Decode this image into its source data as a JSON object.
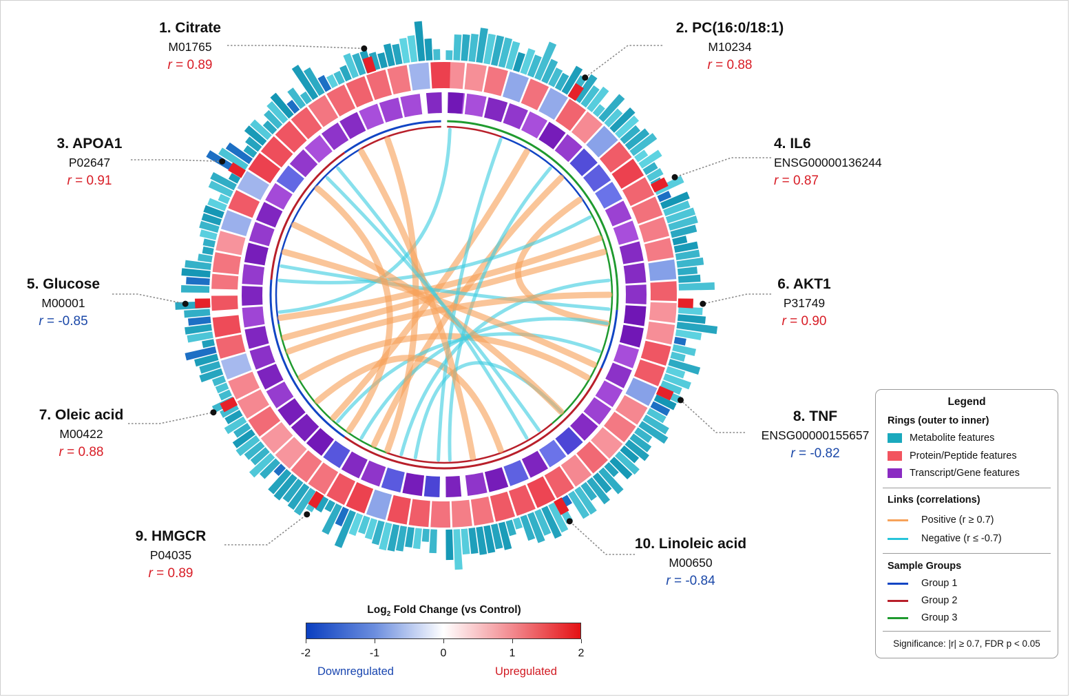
{
  "title": "",
  "features": [
    {
      "name": "1. Citrate",
      "id": "M01765",
      "r": "0.89",
      "sign": "pos",
      "anchor_deg": 342
    },
    {
      "name": "2. PC(16:0/18:1)",
      "id": "M10234",
      "r": "0.88",
      "sign": "pos",
      "anchor_deg": 33
    },
    {
      "name": "3. APOA1",
      "id": "P02647",
      "r": "0.91",
      "sign": "pos",
      "anchor_deg": 301
    },
    {
      "name": "4. IL6",
      "id": "ENSG00000136244",
      "r": "0.87",
      "sign": "pos",
      "anchor_deg": 63
    },
    {
      "name": "5. Glucose",
      "id": "M00001",
      "r": "-0.85",
      "sign": "neg",
      "anchor_deg": 268
    },
    {
      "name": "6. AKT1",
      "id": "P31749",
      "r": "0.90",
      "sign": "pos",
      "anchor_deg": 92
    },
    {
      "name": "7. Oleic acid",
      "id": "M00422",
      "r": "0.88",
      "sign": "pos",
      "anchor_deg": 243
    },
    {
      "name": "8. TNF",
      "id": "ENSG00000155657",
      "r": "-0.82",
      "sign": "neg",
      "anchor_deg": 114
    },
    {
      "name": "9. HMGCR",
      "id": "P04035",
      "r": "0.89",
      "sign": "pos",
      "anchor_deg": 212
    },
    {
      "name": "10. Linoleic acid",
      "id": "M00650",
      "r": "-0.84",
      "sign": "neg",
      "anchor_deg": 151
    }
  ],
  "r_label": "r",
  "colorbar": {
    "title_prefix": "Log",
    "title_sub": "2",
    "title_suffix": " Fold Change (vs Control)",
    "range": [
      -2,
      2
    ],
    "ticks": [
      "-2",
      "-1",
      "0",
      "1",
      "2"
    ],
    "low_label": "Downregulated",
    "high_label": "Upregulated",
    "low_color": "#0b3fc0",
    "high_color": "#e41114"
  },
  "legend": {
    "title": "Legend",
    "rings_heading": "Rings (outer to inner)",
    "rings": [
      {
        "label": "Metabolite features",
        "color": "#1aa9bd"
      },
      {
        "label": "Protein/Peptide features",
        "color": "#f2545f"
      },
      {
        "label": "Transcript/Gene features",
        "color": "#8a2bc2"
      }
    ],
    "links_heading": "Links (correlations)",
    "links": [
      {
        "label": "Positive (r ≥ 0.7)",
        "color": "#f7a25a"
      },
      {
        "label": "Negative (r ≤ -0.7)",
        "color": "#27c4da"
      }
    ],
    "groups_heading": "Sample Groups",
    "groups": [
      {
        "label": "Group 1",
        "color": "#1145c4"
      },
      {
        "label": "Group 2",
        "color": "#b81f2a"
      },
      {
        "label": "Group 3",
        "color": "#1f9a2e"
      }
    ],
    "note": "Significance: |r| ≥ 0.7, FDR p < 0.05"
  },
  "colors": {
    "positive_link": "#f7a25a",
    "negative_link": "#3fcde0",
    "label_pos": "#d81d26",
    "label_neg": "#1b48a8"
  },
  "links": [
    {
      "from": 2,
      "to": 264,
      "sign": "neg"
    },
    {
      "from": 30,
      "to": 222,
      "sign": "pos"
    },
    {
      "from": 45,
      "to": 205,
      "sign": "pos"
    },
    {
      "from": 55,
      "to": 100,
      "sign": "pos"
    },
    {
      "from": 70,
      "to": 262,
      "sign": "pos"
    },
    {
      "from": 75,
      "to": 255,
      "sign": "pos"
    },
    {
      "from": 95,
      "to": 280,
      "sign": "neg"
    },
    {
      "from": 110,
      "to": 220,
      "sign": "neg"
    },
    {
      "from": 120,
      "to": 240,
      "sign": "pos"
    },
    {
      "from": 135,
      "to": 190,
      "sign": "neg"
    },
    {
      "from": 150,
      "to": 320,
      "sign": "neg"
    },
    {
      "from": 160,
      "to": 230,
      "sign": "pos"
    },
    {
      "from": 178,
      "to": 40,
      "sign": "neg"
    },
    {
      "from": 182,
      "to": 20,
      "sign": "neg"
    },
    {
      "from": 195,
      "to": 85,
      "sign": "neg"
    },
    {
      "from": 210,
      "to": 100,
      "sign": "neg"
    },
    {
      "from": 250,
      "to": 90,
      "sign": "pos"
    },
    {
      "from": 275,
      "to": 62,
      "sign": "neg"
    },
    {
      "from": 285,
      "to": 115,
      "sign": "pos"
    },
    {
      "from": 295,
      "to": 135,
      "sign": "pos"
    },
    {
      "from": 310,
      "to": 215,
      "sign": "pos"
    },
    {
      "from": 330,
      "to": 170,
      "sign": "pos"
    },
    {
      "from": 340,
      "to": 200,
      "sign": "pos"
    },
    {
      "from": 315,
      "to": 145,
      "sign": "neg"
    }
  ]
}
